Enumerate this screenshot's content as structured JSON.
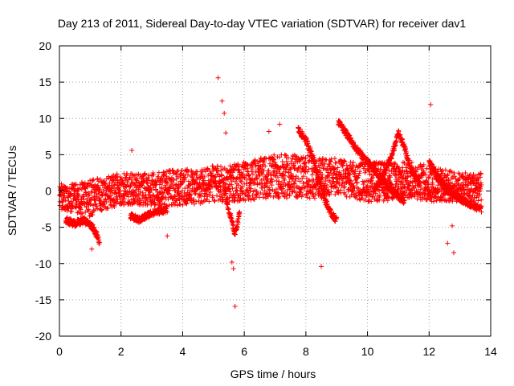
{
  "chart_data": {
    "type": "scatter",
    "title": "Day 213 of 2011, Sidereal Day-to-day VTEC variation (SDTVAR) for receiver dav1",
    "xlabel": "GPS time / hours",
    "ylabel": "SDTVAR / TECUs",
    "xlim": [
      0,
      14
    ],
    "ylim": [
      -20,
      20
    ],
    "xticks": [
      0,
      2,
      4,
      6,
      8,
      10,
      12,
      14
    ],
    "yticks": [
      -20,
      -15,
      -10,
      -5,
      0,
      5,
      10,
      15,
      20
    ],
    "xtick_labels": [
      "0",
      "2",
      "4",
      "6",
      "8",
      "10",
      "12",
      "14"
    ],
    "ytick_labels": [
      "-20",
      "-15",
      "-10",
      "-5",
      "0",
      "5",
      "10",
      "15",
      "20"
    ],
    "grid": true,
    "marker": "+",
    "color": "#ff0000",
    "series": [
      {
        "name": "dav1",
        "band_x": [
          0.0,
          0.5,
          1.0,
          1.5,
          2.0,
          2.5,
          3.0,
          3.5,
          4.0,
          4.5,
          5.0,
          5.5,
          6.0,
          6.5,
          7.0,
          7.5,
          8.0,
          8.5,
          9.0,
          9.5,
          10.0,
          10.5,
          11.0,
          11.5,
          12.0,
          12.5,
          13.0,
          13.7
        ],
        "band_low": [
          -2.5,
          -3.0,
          -3.5,
          -2.5,
          -2.0,
          -2.0,
          -2.0,
          -2.0,
          -2.0,
          -2.0,
          -1.5,
          -1.5,
          -1.5,
          -1.0,
          -1.0,
          -1.0,
          -1.0,
          -1.0,
          -0.5,
          -1.0,
          -1.5,
          -1.5,
          -1.0,
          -1.0,
          -1.5,
          -1.5,
          -1.5,
          -1.5
        ],
        "band_high": [
          1.0,
          1.0,
          1.5,
          2.0,
          2.5,
          2.5,
          2.5,
          3.0,
          3.0,
          3.0,
          3.5,
          3.5,
          4.0,
          4.5,
          5.0,
          5.0,
          5.0,
          4.5,
          4.5,
          4.0,
          4.0,
          4.0,
          4.0,
          4.0,
          3.5,
          3.0,
          2.5,
          2.5
        ],
        "ridges": [
          {
            "x": [
              9.05,
              9.3,
              9.6,
              10.0,
              10.4,
              10.8,
              11.2
            ],
            "y": [
              9.5,
              8.0,
              6.0,
              4.0,
              2.0,
              0.0,
              -1.5
            ]
          },
          {
            "x": [
              7.75,
              8.0,
              8.2,
              8.4,
              8.6,
              8.8,
              9.0
            ],
            "y": [
              8.5,
              7.0,
              5.0,
              2.0,
              -1.0,
              -3.0,
              -4.0
            ]
          },
          {
            "x": [
              10.2,
              10.5,
              10.8,
              11.0,
              11.2,
              11.4,
              11.7
            ],
            "y": [
              0.0,
              2.0,
              5.0,
              8.0,
              6.0,
              3.0,
              1.0
            ]
          },
          {
            "x": [
              12.0,
              12.3,
              12.6,
              13.0,
              13.4,
              13.7
            ],
            "y": [
              4.0,
              2.0,
              0.0,
              -1.0,
              -2.0,
              -2.5
            ]
          },
          {
            "x": [
              0.2,
              0.5,
              0.8,
              1.1,
              1.3
            ],
            "y": [
              -4.0,
              -4.5,
              -4.0,
              -5.0,
              -7.0
            ]
          },
          {
            "x": [
              5.4,
              5.55,
              5.7,
              5.85
            ],
            "y": [
              -1.0,
              -3.5,
              -6.0,
              -3.0
            ]
          },
          {
            "x": [
              2.3,
              2.6,
              3.0,
              3.5
            ],
            "y": [
              -3.5,
              -4.0,
              -3.0,
              -2.5
            ]
          }
        ],
        "outliers": {
          "x": [
            5.15,
            5.28,
            5.35,
            5.4,
            5.6,
            5.65,
            5.7,
            6.8,
            7.15,
            8.5,
            12.05,
            12.6,
            12.8,
            12.75,
            2.35,
            1.05,
            3.5
          ],
          "y": [
            15.6,
            12.4,
            10.7,
            8.0,
            -9.8,
            -10.7,
            -15.9,
            8.2,
            9.2,
            -10.4,
            11.9,
            -7.2,
            -8.5,
            -4.8,
            5.6,
            -8.0,
            -6.2
          ]
        }
      }
    ]
  }
}
